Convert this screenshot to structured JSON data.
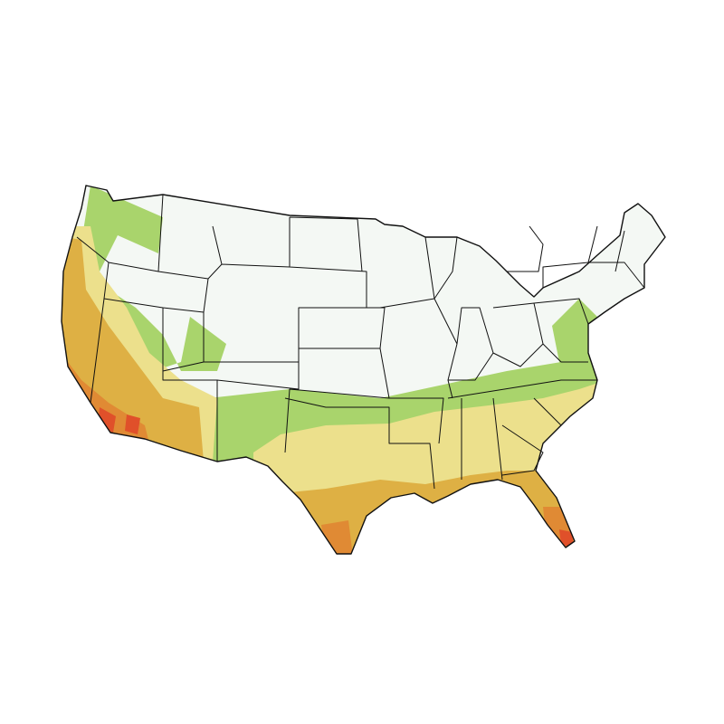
{
  "map": {
    "colors": {
      "background": "#ffffff",
      "coldest": "#f4f8f4",
      "cool": "#a9d46c",
      "mild": "#ece08c",
      "warm": "#deb044",
      "hot": "#e08a34",
      "hottest": "#e0502a",
      "border": "#111111"
    }
  }
}
